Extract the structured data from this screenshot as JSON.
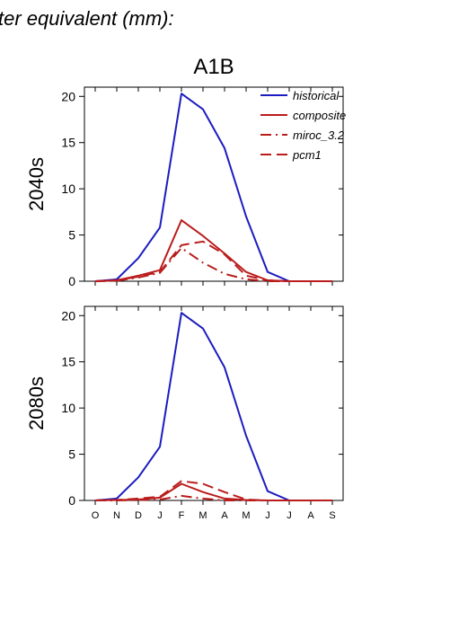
{
  "header": {
    "text": "ter equivalent (mm):",
    "scenario": "A1B"
  },
  "months": [
    "O",
    "N",
    "D",
    "J",
    "F",
    "M",
    "A",
    "M",
    "J",
    "J",
    "A",
    "S"
  ],
  "legend": [
    "historical",
    "composite",
    "miroc_3.2",
    "pcm1"
  ],
  "colors": {
    "historical": "#1c1cc0",
    "projection": "#bb1c1c",
    "axis": "#000000"
  },
  "chart_data": [
    {
      "type": "line",
      "panel_label": "2040s",
      "ylim": [
        0,
        21
      ],
      "yticks": [
        0,
        5,
        10,
        15,
        20
      ],
      "categories": [
        "O",
        "N",
        "D",
        "J",
        "F",
        "M",
        "A",
        "M",
        "J",
        "J",
        "A",
        "S"
      ],
      "series": [
        {
          "name": "historical",
          "style": "solid",
          "color": "#1c1cc0",
          "values": [
            0,
            0.2,
            2.5,
            5.8,
            20.3,
            18.6,
            14.4,
            7.0,
            1.0,
            0,
            0,
            0
          ]
        },
        {
          "name": "composite",
          "style": "solid",
          "color": "#bb1c1c",
          "values": [
            0,
            0.1,
            0.6,
            1.2,
            6.6,
            4.9,
            3.0,
            1.0,
            0.1,
            0,
            0,
            0
          ]
        },
        {
          "name": "miroc_3.2",
          "style": "dashdot",
          "color": "#bb1c1c",
          "values": [
            0,
            0.05,
            0.4,
            0.9,
            3.6,
            2.0,
            0.8,
            0.2,
            0,
            0,
            0,
            0
          ]
        },
        {
          "name": "pcm1",
          "style": "dashed",
          "color": "#bb1c1c",
          "values": [
            0,
            0.1,
            0.5,
            1.0,
            3.9,
            4.3,
            2.9,
            0.6,
            0.1,
            0,
            0,
            0
          ]
        }
      ]
    },
    {
      "type": "line",
      "panel_label": "2080s",
      "ylim": [
        0,
        21
      ],
      "yticks": [
        0,
        5,
        10,
        15,
        20
      ],
      "categories": [
        "O",
        "N",
        "D",
        "J",
        "F",
        "M",
        "A",
        "M",
        "J",
        "J",
        "A",
        "S"
      ],
      "series": [
        {
          "name": "historical",
          "style": "solid",
          "color": "#1c1cc0",
          "values": [
            0,
            0.2,
            2.5,
            5.8,
            20.3,
            18.6,
            14.4,
            7.0,
            1.0,
            0,
            0,
            0
          ]
        },
        {
          "name": "composite",
          "style": "solid",
          "color": "#bb1c1c",
          "values": [
            0,
            0.05,
            0.1,
            0.3,
            1.8,
            0.9,
            0.2,
            0.05,
            0,
            0,
            0,
            0
          ]
        },
        {
          "name": "miroc_3.2",
          "style": "dashdot",
          "color": "#bb1c1c",
          "values": [
            0,
            0,
            0.05,
            0.1,
            0.5,
            0.2,
            0,
            0,
            0,
            0,
            0,
            0
          ]
        },
        {
          "name": "pcm1",
          "style": "dashed",
          "color": "#bb1c1c",
          "values": [
            0,
            0.05,
            0.2,
            0.4,
            2.1,
            1.8,
            0.9,
            0.1,
            0,
            0,
            0,
            0
          ]
        }
      ]
    }
  ]
}
